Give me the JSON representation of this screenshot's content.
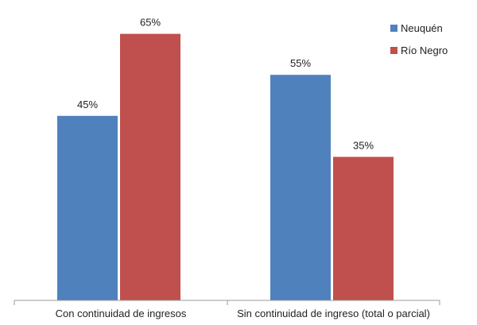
{
  "chart_data": {
    "type": "bar",
    "categories": [
      "Con continuidad de ingresos",
      "Sin continuidad de ingreso (total o parcial)"
    ],
    "series": [
      {
        "name": "Neuquén",
        "values": [
          45,
          55
        ],
        "labels": [
          "45%",
          "55%"
        ],
        "color": "#4F81BD"
      },
      {
        "name": "Río Negro",
        "values": [
          65,
          35
        ],
        "labels": [
          "65%",
          "35%"
        ],
        "color": "#C0504D"
      }
    ],
    "ylim": [
      0,
      100
    ],
    "grid": false,
    "legend": "top-right",
    "axis_color": "#999999"
  }
}
